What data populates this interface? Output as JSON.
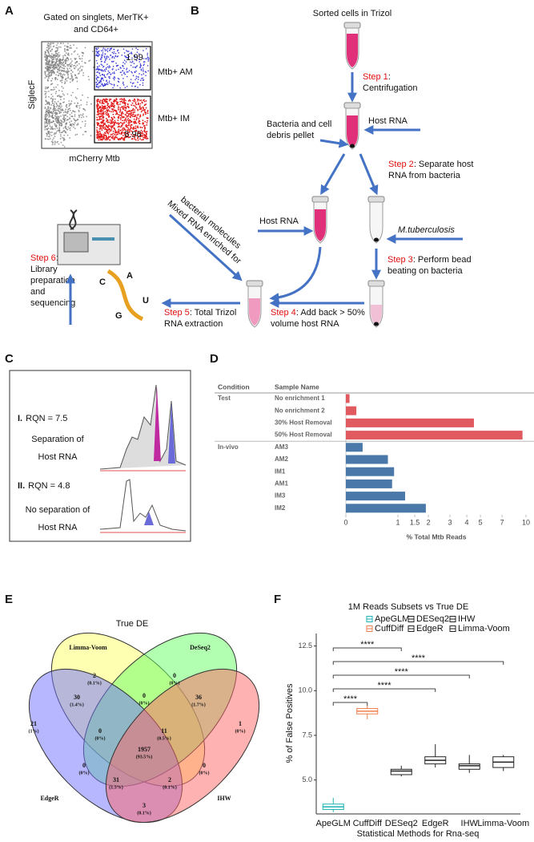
{
  "panel_labels": [
    "A",
    "B",
    "C",
    "D",
    "E",
    "F"
  ],
  "panel_a": {
    "title_lines": [
      "Gated on singlets, MerTK+",
      "and CD64+"
    ],
    "gates": [
      {
        "value": "1.99",
        "name": "Mtb+ AM"
      },
      {
        "value": "8.96",
        "name": "Mtb+ IM"
      }
    ],
    "y_label": "SiglecF",
    "x_label": "mCherry Mtb"
  },
  "panel_b": {
    "title": "Sorted cells in Trizol",
    "steps": [
      {
        "label": "Step 1",
        "text": ":",
        "more": [
          "Centrifugation"
        ]
      },
      {
        "label": "Step 2",
        "text": ": Separate host",
        "more": [
          "RNA from bacteria"
        ]
      },
      {
        "label": "Step 3",
        "text": ": Perform bead",
        "more": [
          "beating on bacteria"
        ]
      },
      {
        "label": "Step 4",
        "text": ": Add back > 50%",
        "more": [
          "volume host RNA"
        ]
      },
      {
        "label": "Step 5",
        "text": ": Total Trizol",
        "more": [
          "RNA extraction"
        ]
      },
      {
        "label": "Step 6",
        "text": ":",
        "more": [
          "Library",
          "preparation",
          "and",
          "sequencing"
        ]
      }
    ],
    "host_rna_top": "Host RNA",
    "pellet": [
      "Bacteria and cell",
      "debris pellet"
    ],
    "host_rna_bottom": "Host RNA",
    "bacteria": "M.tuberculosis",
    "mixed": [
      "Mixed RNA enriched for",
      "bacterial molecules"
    ],
    "rna_letters": [
      "C",
      "A",
      "U",
      "G"
    ]
  },
  "panel_c": {
    "traces": [
      {
        "numeral": "I.",
        "rqn": "RQN = 7.5",
        "lines": [
          "Separation of",
          "Host RNA"
        ]
      },
      {
        "numeral": "II.",
        "rqn": "RQN = 4.8",
        "lines": [
          "No separation of",
          "Host RNA"
        ]
      }
    ]
  },
  "panel_e": {
    "title": "True DE",
    "sets": [
      {
        "name": "Limma-Voom",
        "color": "#ffff66",
        "label_color": "#8a8a1a"
      },
      {
        "name": "DeSeq2",
        "color": "#66ff66",
        "label_color": "#1a9a1a"
      },
      {
        "name": "EdgeR",
        "color": "#7070ff",
        "label_color": "#2a2ae0"
      },
      {
        "name": "IHW",
        "color": "#ff6666",
        "label_color": "#e02a2a"
      }
    ],
    "regions": [
      {
        "count": 2,
        "pct": "(0.1%)"
      },
      {
        "count": 0,
        "pct": "(0%)"
      },
      {
        "count": 30,
        "pct": "(1.4%)"
      },
      {
        "count": 0,
        "pct": "(0%)"
      },
      {
        "count": 36,
        "pct": "(1.7%)"
      },
      {
        "count": 21,
        "pct": "(1%)"
      },
      {
        "count": 0,
        "pct": "(0%)"
      },
      {
        "count": 11,
        "pct": "(0.5%)"
      },
      {
        "count": 1,
        "pct": "(0%)"
      },
      {
        "count": 0,
        "pct": "(0%)"
      },
      {
        "count": 1957,
        "pct": "(93.5%)"
      },
      {
        "count": 0,
        "pct": "(0%)"
      },
      {
        "count": 31,
        "pct": "(1.5%)"
      },
      {
        "count": 2,
        "pct": "(0.1%)"
      },
      {
        "count": 3,
        "pct": "(0.1%)"
      }
    ]
  },
  "chart_data": [
    {
      "type": "bar",
      "orientation": "horizontal",
      "columns": [
        "Condition",
        "Sample Name"
      ],
      "categories": [
        "No enrichment 1",
        "No enrichment 2",
        "30% Host Removal",
        "50% Host Removal",
        "AM3",
        "AM2",
        "IM1",
        "AM1",
        "IM3",
        "IM2"
      ],
      "series": [
        {
          "name": "Test",
          "color": "#e05a5f",
          "values": [
            0.05,
            0.15,
            4.5,
            9.5,
            null,
            null,
            null,
            null,
            null,
            null
          ]
        },
        {
          "name": "In-vivo",
          "color": "#4a78a8",
          "values": [
            null,
            null,
            null,
            null,
            0.25,
            0.75,
            0.9,
            0.85,
            1.2,
            1.9
          ]
        }
      ],
      "xlim": [
        0,
        10
      ],
      "xticks": [
        0,
        1,
        1.5,
        2,
        3,
        4,
        5,
        7,
        10
      ],
      "xscale": "log1p",
      "xlabel": "% Total Mtb Reads"
    },
    {
      "type": "box",
      "title": "1M Reads Subsets vs True DE",
      "categories": [
        "ApeGLM",
        "CuffDiff",
        "DESeq2",
        "EdgeR",
        "IHW",
        "Limma-Voom"
      ],
      "series": [
        {
          "name": "ApeGLM",
          "color": "#1bb3b3",
          "min": 3.2,
          "q1": 3.35,
          "median": 3.5,
          "q3": 3.65,
          "max": 4.0
        },
        {
          "name": "CuffDiff",
          "color": "#f07f4f",
          "min": 8.4,
          "q1": 8.7,
          "median": 8.85,
          "q3": 9.0,
          "max": 9.2
        },
        {
          "name": "DESeq2",
          "color": "#222222",
          "min": 5.2,
          "q1": 5.3,
          "median": 5.5,
          "q3": 5.6,
          "max": 5.8
        },
        {
          "name": "EdgeR",
          "color": "#222222",
          "min": 5.7,
          "q1": 5.9,
          "median": 6.1,
          "q3": 6.3,
          "max": 7.0
        },
        {
          "name": "IHW",
          "color": "#222222",
          "min": 5.4,
          "q1": 5.6,
          "median": 5.8,
          "q3": 5.9,
          "max": 6.4
        },
        {
          "name": "Limma-Voom",
          "color": "#222222",
          "min": 5.5,
          "q1": 5.7,
          "median": 6.0,
          "q3": 6.3,
          "max": 6.4
        }
      ],
      "ylim": [
        3.1,
        13.2
      ],
      "yticks": [
        {
          "value": 5,
          "label": "5.0"
        },
        {
          "value": 7.5,
          "label": "7.5"
        },
        {
          "value": 10,
          "label": "10.0"
        },
        {
          "value": 12.5,
          "label": "12.5"
        }
      ],
      "ylabel": "% of False Positives",
      "xlabel": "Statistical Methods for Rna-seq",
      "comparisons": [
        {
          "pair": [
            0,
            2
          ],
          "label": "****"
        },
        {
          "pair": [
            0,
            5
          ],
          "label": "****"
        },
        {
          "pair": [
            0,
            4
          ],
          "label": "****"
        },
        {
          "pair": [
            0,
            3
          ],
          "label": "****"
        },
        {
          "pair": [
            0,
            1
          ],
          "label": "****"
        }
      ]
    }
  ]
}
